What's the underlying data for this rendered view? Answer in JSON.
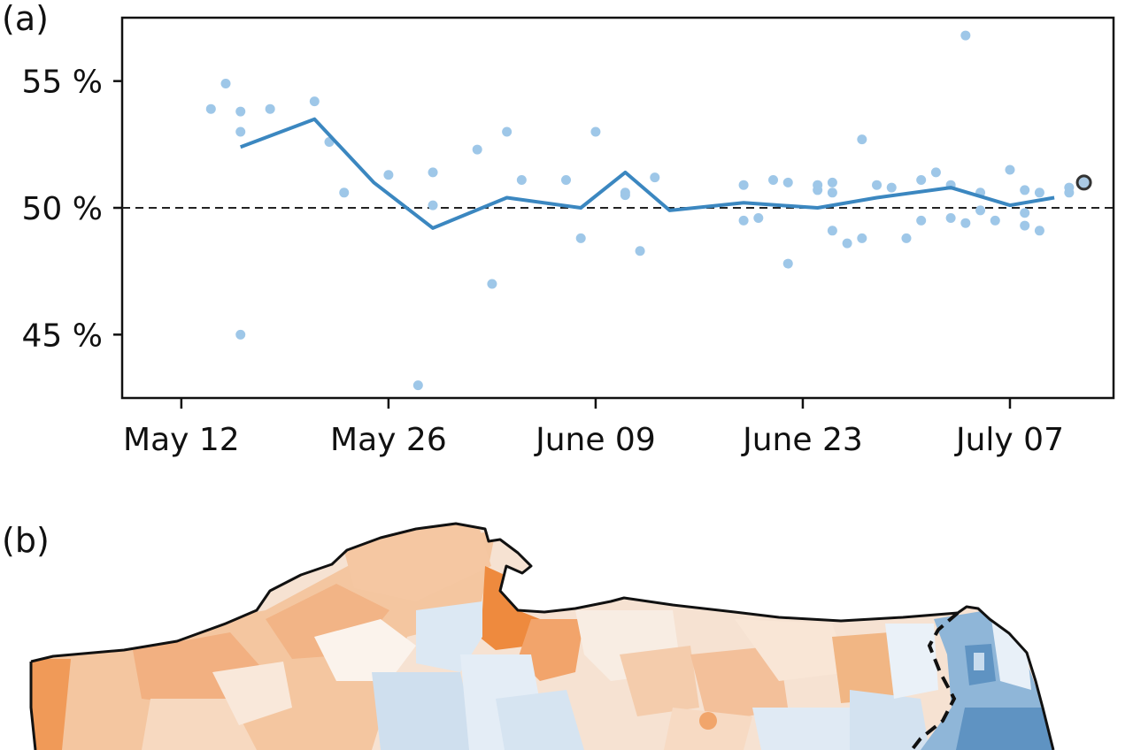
{
  "panels": {
    "a_label": "(a)",
    "b_label": "(b)"
  },
  "chart_data": {
    "type": "scatter",
    "title": "",
    "xlabel": "",
    "ylabel": "",
    "x_axis": {
      "type": "date",
      "range": [
        "2020-05-08",
        "2020-07-14"
      ],
      "ticks": [
        {
          "date": "2020-05-12",
          "label": "May 12"
        },
        {
          "date": "2020-05-26",
          "label": "May 26"
        },
        {
          "date": "2020-06-09",
          "label": "June 09"
        },
        {
          "date": "2020-06-23",
          "label": "June 23"
        },
        {
          "date": "2020-07-07",
          "label": "July 07"
        }
      ]
    },
    "y_axis": {
      "range": [
        42.5,
        57.5
      ],
      "unit": "%",
      "ticks": [
        {
          "value": 45,
          "label": "45 %"
        },
        {
          "value": 50,
          "label": "50 %"
        },
        {
          "value": 55,
          "label": "55 %"
        }
      ]
    },
    "reference_line": {
      "value": 50,
      "style": "dashed",
      "color": "#222222"
    },
    "series": [
      {
        "type": "scatter",
        "color": "#9ec7e8",
        "points": [
          {
            "x": "2020-05-14",
            "y": 53.9
          },
          {
            "x": "2020-05-15",
            "y": 54.9
          },
          {
            "x": "2020-05-16",
            "y": 53.0
          },
          {
            "x": "2020-05-16",
            "y": 53.8
          },
          {
            "x": "2020-05-16",
            "y": 45.0
          },
          {
            "x": "2020-05-18",
            "y": 53.9
          },
          {
            "x": "2020-05-21",
            "y": 54.2
          },
          {
            "x": "2020-05-22",
            "y": 52.6
          },
          {
            "x": "2020-05-23",
            "y": 50.6
          },
          {
            "x": "2020-05-26",
            "y": 51.3
          },
          {
            "x": "2020-05-28",
            "y": 43.0
          },
          {
            "x": "2020-05-29",
            "y": 51.4
          },
          {
            "x": "2020-05-29",
            "y": 50.1
          },
          {
            "x": "2020-06-01",
            "y": 52.3
          },
          {
            "x": "2020-06-02",
            "y": 47.0
          },
          {
            "x": "2020-06-03",
            "y": 53.0
          },
          {
            "x": "2020-06-04",
            "y": 51.1
          },
          {
            "x": "2020-06-07",
            "y": 51.1
          },
          {
            "x": "2020-06-08",
            "y": 48.8
          },
          {
            "x": "2020-06-09",
            "y": 53.0
          },
          {
            "x": "2020-06-11",
            "y": 50.6
          },
          {
            "x": "2020-06-11",
            "y": 50.5
          },
          {
            "x": "2020-06-12",
            "y": 48.3
          },
          {
            "x": "2020-06-13",
            "y": 51.2
          },
          {
            "x": "2020-06-19",
            "y": 50.9
          },
          {
            "x": "2020-06-19",
            "y": 49.5
          },
          {
            "x": "2020-06-20",
            "y": 49.6
          },
          {
            "x": "2020-06-21",
            "y": 51.1
          },
          {
            "x": "2020-06-22",
            "y": 51.0
          },
          {
            "x": "2020-06-22",
            "y": 47.8
          },
          {
            "x": "2020-06-24",
            "y": 50.7
          },
          {
            "x": "2020-06-24",
            "y": 50.9
          },
          {
            "x": "2020-06-25",
            "y": 51.0
          },
          {
            "x": "2020-06-25",
            "y": 50.6
          },
          {
            "x": "2020-06-25",
            "y": 49.1
          },
          {
            "x": "2020-06-26",
            "y": 48.6
          },
          {
            "x": "2020-06-27",
            "y": 48.8
          },
          {
            "x": "2020-06-27",
            "y": 52.7
          },
          {
            "x": "2020-06-28",
            "y": 50.9
          },
          {
            "x": "2020-06-29",
            "y": 50.8
          },
          {
            "x": "2020-06-30",
            "y": 48.8
          },
          {
            "x": "2020-07-01",
            "y": 49.5
          },
          {
            "x": "2020-07-01",
            "y": 51.1
          },
          {
            "x": "2020-07-02",
            "y": 51.4
          },
          {
            "x": "2020-07-03",
            "y": 49.6
          },
          {
            "x": "2020-07-03",
            "y": 50.9
          },
          {
            "x": "2020-07-04",
            "y": 56.8
          },
          {
            "x": "2020-07-04",
            "y": 49.4
          },
          {
            "x": "2020-07-05",
            "y": 50.6
          },
          {
            "x": "2020-07-05",
            "y": 49.9
          },
          {
            "x": "2020-07-06",
            "y": 49.5
          },
          {
            "x": "2020-07-07",
            "y": 51.5
          },
          {
            "x": "2020-07-08",
            "y": 49.3
          },
          {
            "x": "2020-07-08",
            "y": 49.8
          },
          {
            "x": "2020-07-08",
            "y": 50.7
          },
          {
            "x": "2020-07-09",
            "y": 50.6
          },
          {
            "x": "2020-07-09",
            "y": 49.1
          },
          {
            "x": "2020-07-11",
            "y": 50.6
          },
          {
            "x": "2020-07-11",
            "y": 50.8
          }
        ]
      },
      {
        "type": "line",
        "color": "#3b87c0",
        "points": [
          {
            "x": "2020-05-16",
            "y": 52.4
          },
          {
            "x": "2020-05-21",
            "y": 53.5
          },
          {
            "x": "2020-05-25",
            "y": 51.0
          },
          {
            "x": "2020-05-29",
            "y": 49.2
          },
          {
            "x": "2020-06-03",
            "y": 50.4
          },
          {
            "x": "2020-06-08",
            "y": 50.0
          },
          {
            "x": "2020-06-11",
            "y": 51.4
          },
          {
            "x": "2020-06-14",
            "y": 49.9
          },
          {
            "x": "2020-06-19",
            "y": 50.2
          },
          {
            "x": "2020-06-24",
            "y": 50.0
          },
          {
            "x": "2020-06-28",
            "y": 50.4
          },
          {
            "x": "2020-07-03",
            "y": 50.8
          },
          {
            "x": "2020-07-07",
            "y": 50.1
          },
          {
            "x": "2020-07-10",
            "y": 50.4
          }
        ]
      },
      {
        "type": "marker",
        "color": "#333333",
        "points": [
          {
            "x": "2020-07-12",
            "y": 51.0
          }
        ]
      }
    ]
  }
}
